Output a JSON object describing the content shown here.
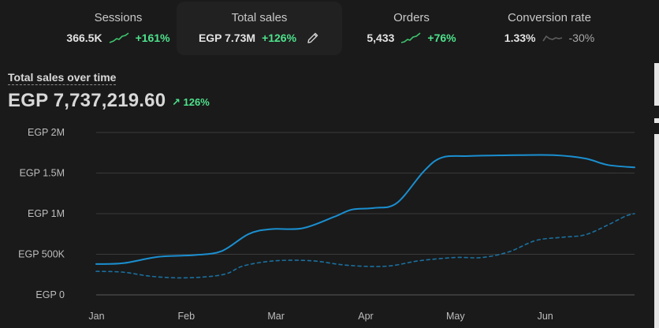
{
  "metrics": [
    {
      "label": "Sessions",
      "value": "366.5K",
      "change": "+161%",
      "trend": "up",
      "spark_color": "#3ec46d"
    },
    {
      "label": "Total sales",
      "value": "EGP 7.73M",
      "change": "+126%",
      "trend": "up",
      "active": true,
      "edit_icon": "pencil-icon"
    },
    {
      "label": "Orders",
      "value": "5,433",
      "change": "+76%",
      "trend": "up",
      "spark_color": "#3ec46d"
    },
    {
      "label": "Conversion rate",
      "value": "1.33%",
      "change": "-30%",
      "trend": "down",
      "spark_color": "#5e5e5e"
    }
  ],
  "chart_title": "Total sales over time",
  "chart_total": "EGP 7,737,219.60",
  "chart_change": "126%",
  "chart_change_icon": "arrow-up-right-icon",
  "colors": {
    "accent": "#1a8fd0",
    "comparison": "#1a6f9e",
    "positive": "#4ee28c"
  },
  "chart_data": {
    "type": "line",
    "ylim": [
      0,
      2000000
    ],
    "y_ticks": [
      0,
      500000,
      1000000,
      1500000,
      2000000
    ],
    "y_tick_labels": [
      "EGP 0",
      "EGP 500K",
      "EGP 1M",
      "EGP 1.5M",
      "EGP 2M"
    ],
    "x_range": [
      0,
      6
    ],
    "x_ticks": [
      0,
      1,
      2,
      3,
      4,
      5
    ],
    "x_tick_labels": [
      "Jan",
      "Feb",
      "Mar",
      "Apr",
      "May",
      "Jun"
    ],
    "grid": true,
    "series": [
      {
        "style": "solid",
        "points": [
          [
            0,
            380000
          ],
          [
            0.3,
            390000
          ],
          [
            0.7,
            470000
          ],
          [
            1.1,
            490000
          ],
          [
            1.4,
            540000
          ],
          [
            1.7,
            750000
          ],
          [
            1.95,
            810000
          ],
          [
            2.3,
            820000
          ],
          [
            2.65,
            960000
          ],
          [
            2.85,
            1050000
          ],
          [
            3.1,
            1070000
          ],
          [
            3.35,
            1130000
          ],
          [
            3.65,
            1520000
          ],
          [
            3.85,
            1690000
          ],
          [
            4.15,
            1710000
          ],
          [
            4.7,
            1720000
          ],
          [
            5.1,
            1720000
          ],
          [
            5.45,
            1680000
          ],
          [
            5.7,
            1600000
          ],
          [
            6,
            1570000
          ]
        ]
      },
      {
        "style": "dashed",
        "points": [
          [
            0,
            290000
          ],
          [
            0.3,
            280000
          ],
          [
            0.6,
            230000
          ],
          [
            0.9,
            210000
          ],
          [
            1.2,
            220000
          ],
          [
            1.45,
            260000
          ],
          [
            1.65,
            360000
          ],
          [
            2,
            420000
          ],
          [
            2.4,
            420000
          ],
          [
            2.75,
            370000
          ],
          [
            3.05,
            350000
          ],
          [
            3.3,
            360000
          ],
          [
            3.6,
            420000
          ],
          [
            4,
            460000
          ],
          [
            4.3,
            460000
          ],
          [
            4.6,
            530000
          ],
          [
            4.9,
            670000
          ],
          [
            5.2,
            710000
          ],
          [
            5.45,
            740000
          ],
          [
            5.7,
            860000
          ],
          [
            5.9,
            970000
          ],
          [
            6,
            1000000
          ]
        ]
      }
    ]
  }
}
